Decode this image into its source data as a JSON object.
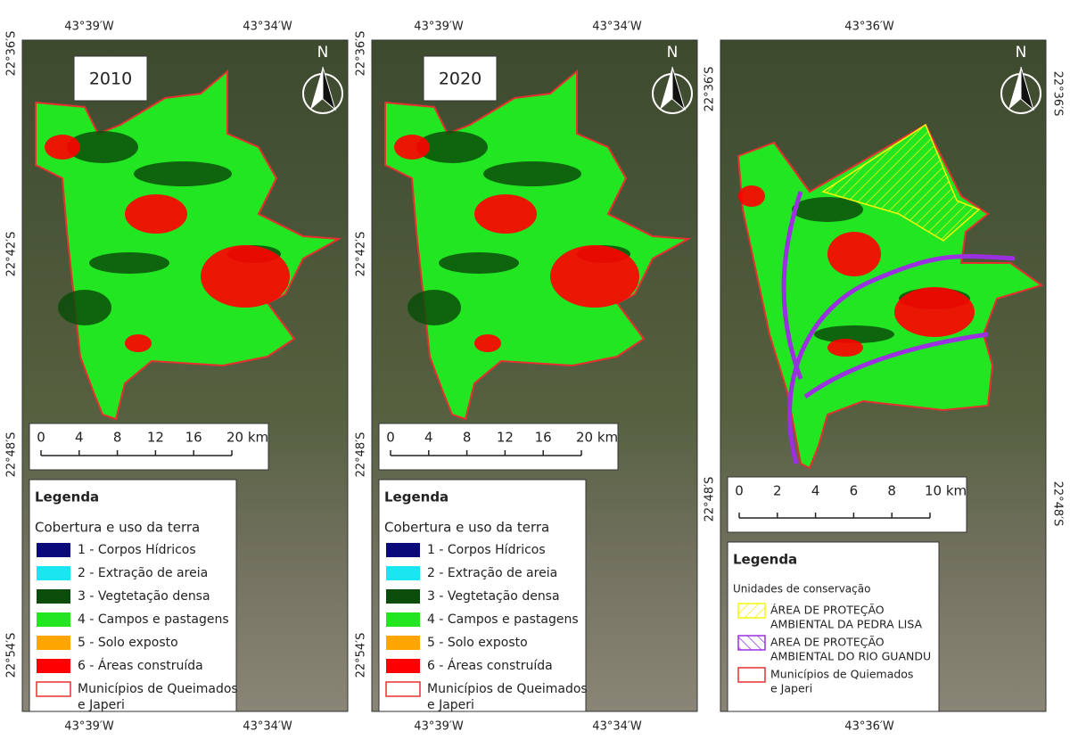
{
  "panels": [
    {
      "year": "2010",
      "north": "N",
      "top_labels": [
        "43°39′W",
        "43°34′W"
      ],
      "bottom_labels": [
        "43°39′W",
        "43°34′W"
      ],
      "left_labels": [
        "22°36′S",
        "22°42′S",
        "22°48′S",
        "22°54′S"
      ],
      "right_labels": [],
      "scale": [
        "0",
        "4",
        "8",
        "12",
        "16",
        "20 km"
      ],
      "legend": {
        "title": "Legenda",
        "subtitle": "Cobertura e uso da terra",
        "items": [
          {
            "label": [
              "1 - Corpos Hídricos"
            ],
            "color": "#0a0a7a"
          },
          {
            "label": [
              "2 - Extração de areia"
            ],
            "color": "#19e6f0"
          },
          {
            "label": [
              "3 - Vegtetação densa"
            ],
            "color": "#0b4d0b"
          },
          {
            "label": [
              "4 - Campos e pastagens"
            ],
            "color": "#22e622"
          },
          {
            "label": [
              "5 - Solo exposto"
            ],
            "color": "#ffa500"
          },
          {
            "label": [
              "6 - Áreas construída"
            ],
            "color": "#ff0000"
          },
          {
            "label": [
              "Municípios de Queimados",
              "e Japeri"
            ],
            "color": "#e53030"
          }
        ]
      }
    },
    {
      "year": "2020",
      "north": "N",
      "top_labels": [
        "43°39′W",
        "43°34′W"
      ],
      "bottom_labels": [
        "43°39′W",
        "43°34′W"
      ],
      "left_labels": [
        "22°36′S",
        "22°42′S",
        "22°48′S",
        "22°54′S"
      ],
      "right_labels": [],
      "scale": [
        "0",
        "4",
        "8",
        "12",
        "16",
        "20 km"
      ],
      "legend": {
        "title": "Legenda",
        "subtitle": "Cobertura e uso da terra",
        "items": [
          {
            "label": [
              "1 - Corpos Hídricos"
            ],
            "color": "#0a0a7a"
          },
          {
            "label": [
              "2 - Extração de areia"
            ],
            "color": "#19e6f0"
          },
          {
            "label": [
              "3 - Vegtetação densa"
            ],
            "color": "#0b4d0b"
          },
          {
            "label": [
              "4 - Campos e pastagens"
            ],
            "color": "#22e622"
          },
          {
            "label": [
              "5 - Solo exposto"
            ],
            "color": "#ffa500"
          },
          {
            "label": [
              "6 - Áreas construída"
            ],
            "color": "#ff0000"
          },
          {
            "label": [
              "Municípios de Queimados",
              "e Japeri"
            ],
            "color": "#e53030"
          }
        ]
      }
    },
    {
      "north": "N",
      "top_labels": [
        "43°36′W"
      ],
      "bottom_labels": [
        "43°36′W"
      ],
      "left_labels": [
        "22°36′S",
        "22°48′S"
      ],
      "right_labels": [
        "22°36′S",
        "22°48′S"
      ],
      "scale": [
        "0",
        "2",
        "4",
        "6",
        "8",
        "10 km"
      ],
      "legend": {
        "title": "Legenda",
        "subtitle": "Unidades de conservação",
        "items": [
          {
            "label": [
              "ÁREA DE PROTEÇÃO",
              "AMBIENTAL DA PEDRA LISA"
            ],
            "color": "#f5f50a"
          },
          {
            "label": [
              "AREA DE PROTEÇÃO",
              "AMBIENTAL DO RIO GUANDU"
            ],
            "color": "#9b30e0"
          },
          {
            "label": [
              "Municípios de Quiemados",
              "e Japeri"
            ],
            "color": "#e53030"
          }
        ]
      }
    }
  ]
}
